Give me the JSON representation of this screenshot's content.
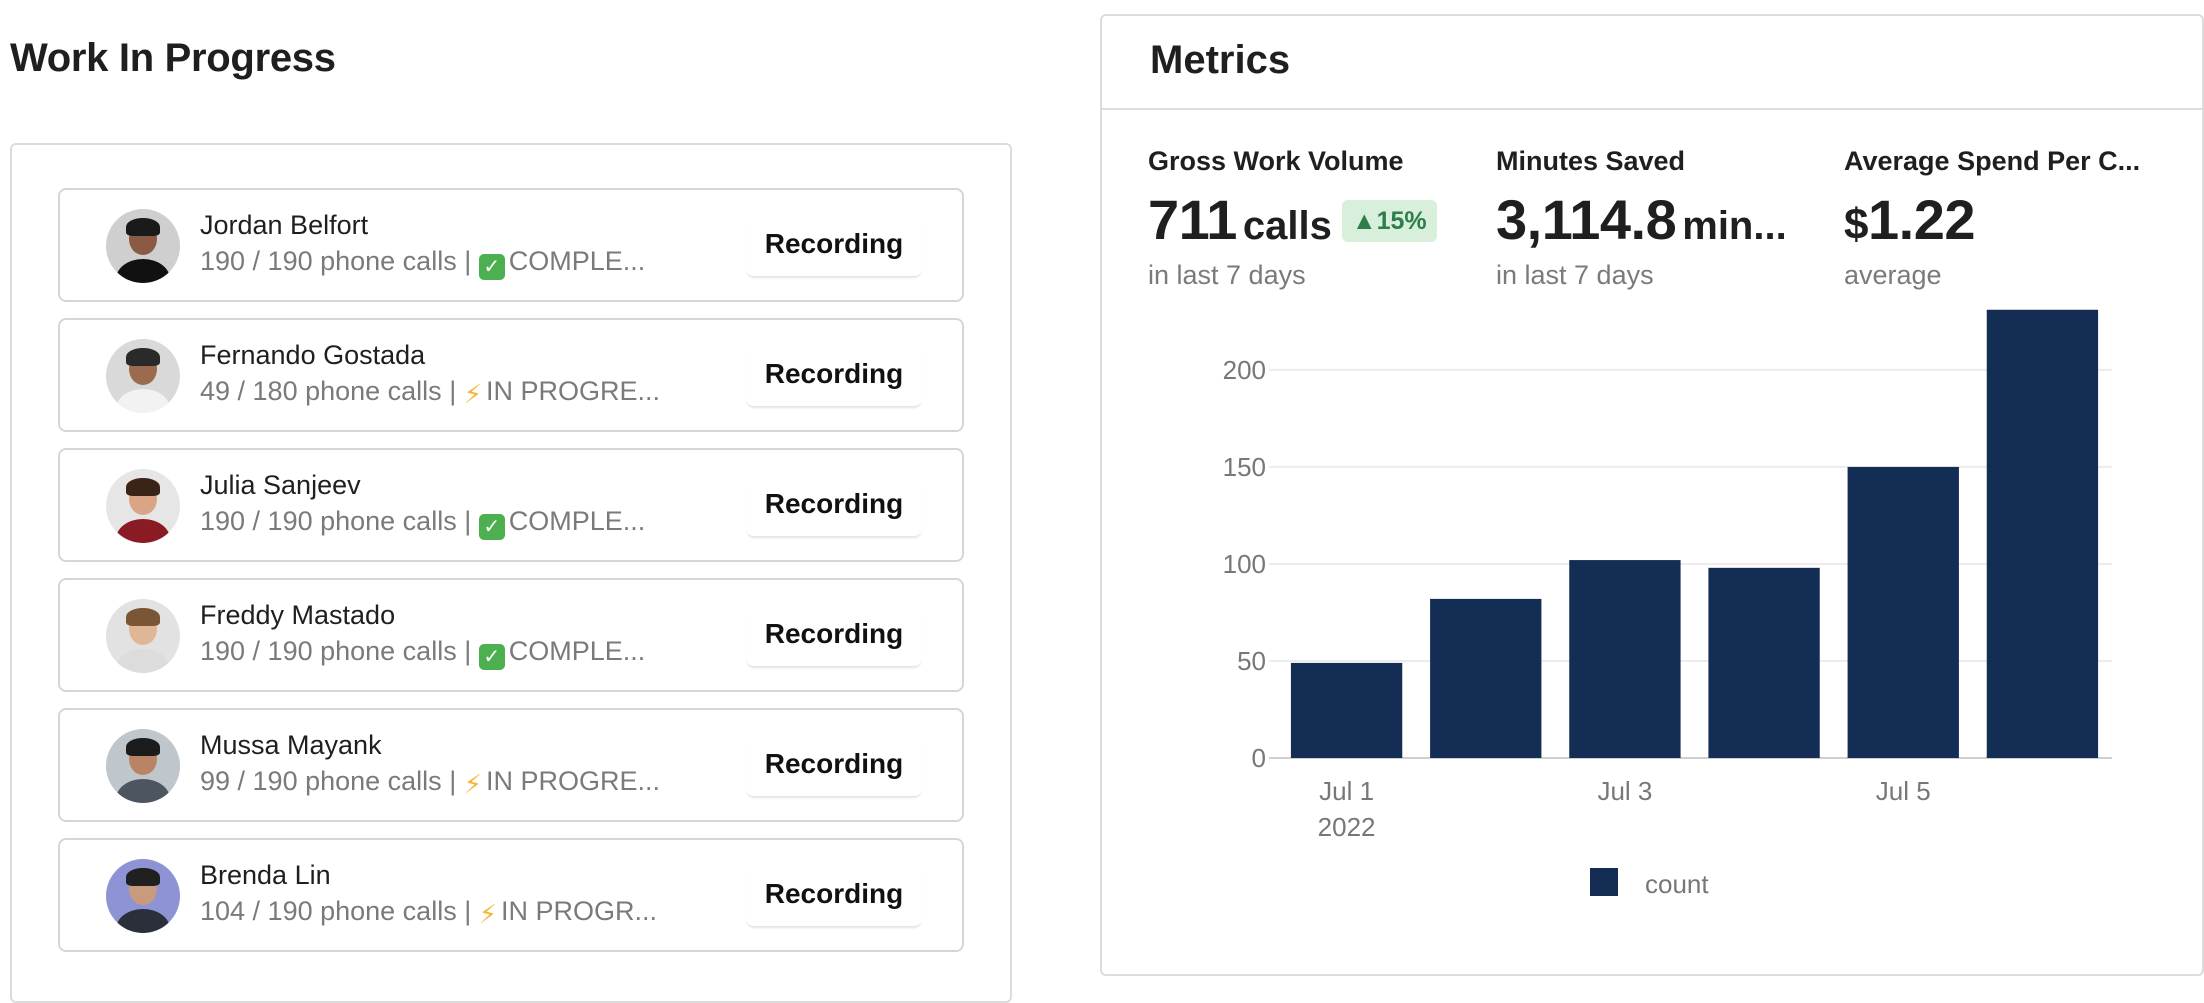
{
  "work_in_progress": {
    "title": "Work In Progress",
    "people": [
      {
        "name": "Jordan Belfort",
        "calls": "190 / 190 phone calls",
        "status": "COMPLE...",
        "status_icon": "check-icon",
        "button": "Recording"
      },
      {
        "name": "Fernando Gostada",
        "calls": "49 / 180 phone calls",
        "status": "IN PROGRE...",
        "status_icon": "bolt-icon",
        "button": "Recording"
      },
      {
        "name": "Julia Sanjeev",
        "calls": "190 / 190 phone calls",
        "status": "COMPLE...",
        "status_icon": "check-icon",
        "button": "Recording"
      },
      {
        "name": "Freddy Mastado",
        "calls": "190 / 190 phone calls",
        "status": "COMPLE...",
        "status_icon": "check-icon",
        "button": "Recording"
      },
      {
        "name": "Mussa Mayank",
        "calls": "99 / 190 phone calls",
        "status": "IN PROGRE...",
        "status_icon": "bolt-icon",
        "button": "Recording"
      },
      {
        "name": "Brenda Lin",
        "calls": "104 / 190 phone calls",
        "status": "IN PROGR...",
        "status_icon": "bolt-icon",
        "button": "Recording"
      }
    ]
  },
  "metrics": {
    "title": "Metrics",
    "stats": [
      {
        "label": "Gross Work Volume",
        "value": "711",
        "unit": "calls",
        "badge": "15%",
        "sub": "in last 7 days"
      },
      {
        "label": "Minutes Saved",
        "value": "3,114.8",
        "unit": "min...",
        "sub": "in last 7 days"
      },
      {
        "label": "Average Spend Per C...",
        "currency": "$",
        "value": "1.22",
        "sub": "average"
      }
    ]
  },
  "colors": {
    "bar": "#132d55",
    "badge_bg": "#d8efdc",
    "badge_text": "#2e7d4a"
  },
  "chart_data": {
    "type": "bar",
    "categories": [
      "2022-07-01",
      "2022-07-02",
      "2022-07-03",
      "2022-07-04",
      "2022-07-05",
      "2022-07-06"
    ],
    "x_tick_labels": [
      {
        "category": "2022-07-01",
        "label": "Jul 1",
        "sublabel": "2022"
      },
      {
        "category": "2022-07-03",
        "label": "Jul 3"
      },
      {
        "category": "2022-07-05",
        "label": "Jul 5"
      }
    ],
    "series": [
      {
        "name": "count",
        "values": [
          49,
          82,
          102,
          98,
          150,
          231
        ]
      }
    ],
    "yticks": [
      0,
      50,
      100,
      150,
      200
    ],
    "ylim": [
      0,
      235
    ],
    "grid": true,
    "legend": "bottom"
  }
}
